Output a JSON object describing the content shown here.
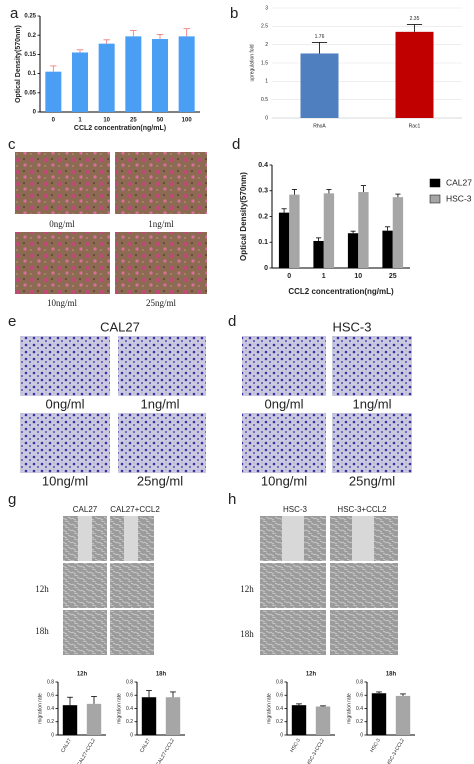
{
  "chart_data": [
    {
      "type": "bar",
      "y_label": "Optical Density(570nm)",
      "x_label": "CCL2 concentration(ng/mL)",
      "categories": [
        "0",
        "1",
        "10",
        "25",
        "50",
        "100"
      ],
      "values": [
        0.105,
        0.155,
        0.178,
        0.197,
        0.19,
        0.197
      ],
      "errors": [
        0.015,
        0.007,
        0.01,
        0.015,
        0.012,
        0.02
      ],
      "color": "#4a9ff5",
      "ylim": [
        0,
        0.25
      ],
      "yticks": [
        0,
        0.05,
        0.1,
        0.15,
        0.2,
        0.25
      ]
    },
    {
      "type": "bar",
      "y_label": "upregulation fold",
      "categories": [
        "RhoA",
        "Rac1"
      ],
      "values": [
        1.76,
        2.35
      ],
      "errors": [
        0.3,
        0.2
      ],
      "colors": [
        "#4f7fbf",
        "#c00000"
      ],
      "ylim": [
        0,
        3
      ],
      "yticks": [
        0,
        0.5,
        1,
        1.5,
        2,
        2.5,
        3
      ],
      "grid": true
    },
    {
      "type": "grouped_bar",
      "y_label": "Optical Density(570nm)",
      "x_label": "CCL2 concentration(ng/mL)",
      "categories": [
        "0",
        "1",
        "10",
        "25"
      ],
      "series": [
        {
          "name": "CAL27",
          "color": "#000000",
          "values": [
            0.215,
            0.105,
            0.135,
            0.145
          ],
          "errors": [
            0.015,
            0.012,
            0.008,
            0.015
          ]
        },
        {
          "name": "HSC-3",
          "color": "#a6a6a6",
          "values": [
            0.285,
            0.29,
            0.295,
            0.275
          ],
          "errors": [
            0.02,
            0.015,
            0.025,
            0.012
          ]
        }
      ],
      "ylim": [
        0,
        0.4
      ],
      "yticks": [
        0,
        0.1,
        0.2,
        0.3,
        0.4
      ],
      "legend": "right"
    },
    {
      "type": "bar",
      "title": "12h",
      "y_label": "migration rate",
      "categories": [
        "CAL27",
        "CAL27+CCL2"
      ],
      "values": [
        0.45,
        0.47
      ],
      "errors": [
        0.12,
        0.11
      ],
      "colors": [
        "#000000",
        "#a6a6a6"
      ],
      "ylim": [
        0,
        0.8
      ],
      "yticks": [
        0,
        0.2,
        0.4,
        0.6,
        0.8
      ]
    },
    {
      "type": "bar",
      "title": "18h",
      "y_label": "migration rate",
      "categories": [
        "CAL27",
        "CAL27+CCL2"
      ],
      "values": [
        0.57,
        0.57
      ],
      "errors": [
        0.1,
        0.08
      ],
      "colors": [
        "#000000",
        "#a6a6a6"
      ],
      "ylim": [
        0,
        0.8
      ],
      "yticks": [
        0,
        0.2,
        0.4,
        0.6,
        0.8
      ]
    },
    {
      "type": "bar",
      "title": "12h",
      "y_label": "migration rate",
      "categories": [
        "HSC-3",
        "HSC-3+CCL2"
      ],
      "values": [
        0.45,
        0.43
      ],
      "errors": [
        0.02,
        0.01
      ],
      "colors": [
        "#000000",
        "#a6a6a6"
      ],
      "ylim": [
        0,
        0.8
      ],
      "yticks": [
        0,
        0.2,
        0.4,
        0.6,
        0.8
      ]
    },
    {
      "type": "bar",
      "title": "18h",
      "y_label": "migration rate",
      "categories": [
        "HSC-3",
        "HSC-3+CCL2"
      ],
      "values": [
        0.63,
        0.59
      ],
      "errors": [
        0.02,
        0.03
      ],
      "colors": [
        "#000000",
        "#a6a6a6"
      ],
      "ylim": [
        0,
        0.8
      ],
      "yticks": [
        0,
        0.2,
        0.4,
        0.6,
        0.8
      ]
    }
  ],
  "figure": {
    "panel_letters": [
      "a",
      "b",
      "c",
      "d",
      "e",
      "d",
      "g",
      "h"
    ],
    "c_labels": [
      "0ng/ml",
      "1ng/ml",
      "10ng/ml",
      "25ng/ml"
    ],
    "e": {
      "title": "CAL27",
      "labels": [
        "0ng/ml",
        "1ng/ml",
        "10ng/ml",
        "25ng/ml"
      ]
    },
    "d2": {
      "title": "HSC-3",
      "labels": [
        "0ng/ml",
        "1ng/ml",
        "10ng/ml",
        "25ng/ml"
      ]
    },
    "g": {
      "columns": [
        "CAL27",
        "CAL27+CCL2"
      ],
      "rows": [
        "12h",
        "18h"
      ]
    },
    "h": {
      "columns": [
        "HSC-3",
        "HSC-3+CCL2"
      ],
      "rows": [
        "12h",
        "18h"
      ]
    }
  }
}
